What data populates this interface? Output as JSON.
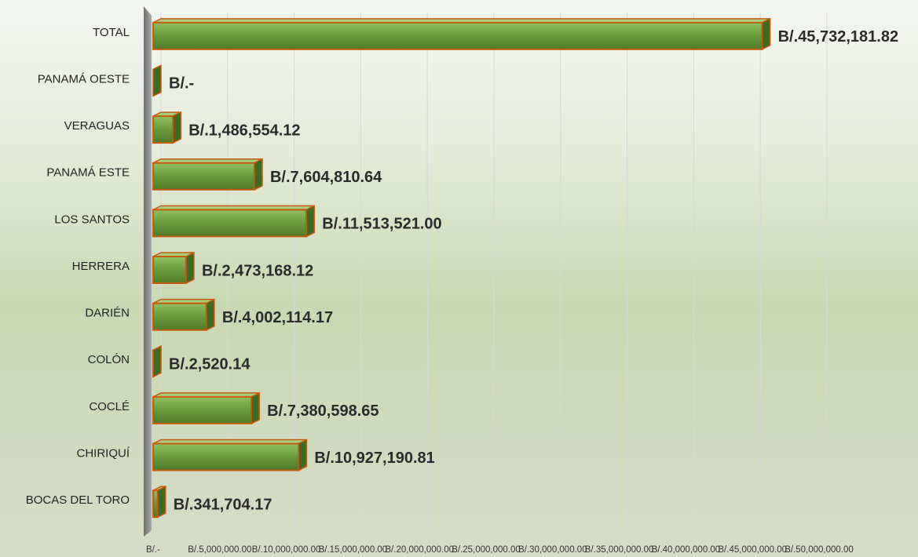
{
  "chart_data": {
    "type": "bar",
    "orientation": "horizontal",
    "categories": [
      "TOTAL",
      "PANAMÁ OESTE",
      "VERAGUAS",
      "PANAMÁ ESTE",
      "LOS SANTOS",
      "HERRERA",
      "DARIÉN",
      "COLÓN",
      "COCLÉ",
      "CHIRIQUÍ",
      "BOCAS DEL TORO"
    ],
    "values": [
      45732181.82,
      0,
      1486554.12,
      7604810.64,
      11513521.0,
      2473168.12,
      4002114.17,
      2520.14,
      7380598.65,
      10927190.81,
      341704.17
    ],
    "value_labels": [
      "B/.45,732,181.82",
      "B/.-",
      "B/.1,486,554.12",
      "B/.7,604,810.64",
      "B/.11,513,521.00",
      "B/.2,473,168.12",
      "B/.4,002,114.17",
      "B/.2,520.14",
      "B/.7,380,598.65",
      "B/.10,927,190.81",
      "B/.341,704.17"
    ],
    "color": "#6a9a3c",
    "xlim": [
      0,
      50000000
    ],
    "xticks": [
      {
        "value": 0,
        "label": "B/.-"
      },
      {
        "value": 5000000,
        "label": "B/.5,000,000.00"
      },
      {
        "value": 10000000,
        "label": "B/.10,000,000.00"
      },
      {
        "value": 15000000,
        "label": "B/.15,000,000.00"
      },
      {
        "value": 20000000,
        "label": "B/.20,000,000.00"
      },
      {
        "value": 25000000,
        "label": "B/.25,000,000.00"
      },
      {
        "value": 30000000,
        "label": "B/.30,000,000.00"
      },
      {
        "value": 35000000,
        "label": "B/.35,000,000.00"
      },
      {
        "value": 40000000,
        "label": "B/.40,000,000.00"
      },
      {
        "value": 45000000,
        "label": "B/.45,000,000.00"
      },
      {
        "value": 50000000,
        "label": "B/.50,000,000.00"
      }
    ],
    "grid": true
  }
}
